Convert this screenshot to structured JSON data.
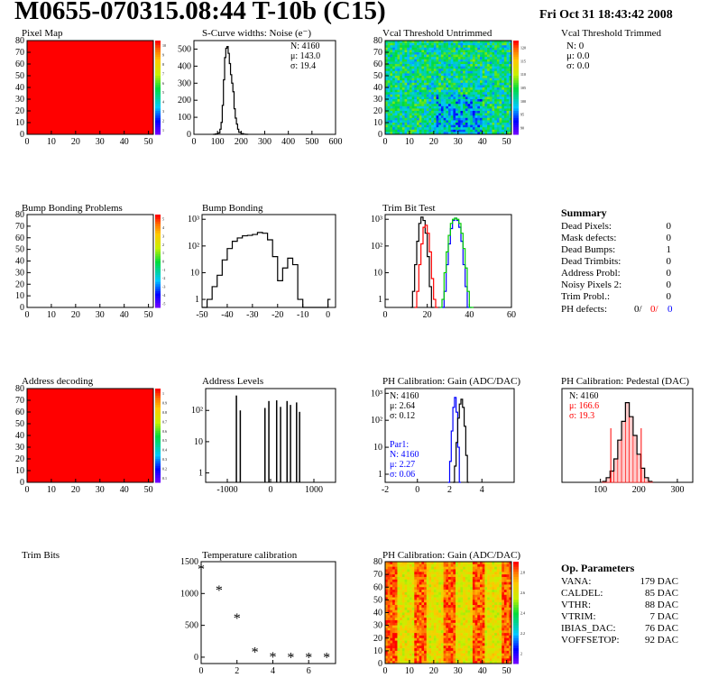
{
  "header": {
    "title": "M0655-070315.08:44 T-10b (C15)",
    "date": "Fri Oct 31 18:43:42 2008"
  },
  "panels": {
    "pixel_map": {
      "title": "Pixel Map",
      "xticks": [
        "0",
        "10",
        "20",
        "30",
        "40",
        "50"
      ],
      "yticks": [
        "0",
        "10",
        "20",
        "30",
        "40",
        "50",
        "60",
        "70",
        "80"
      ],
      "scale_ticks": [
        "10",
        "9",
        "8",
        "7",
        "6",
        "5",
        "4",
        "3",
        "2",
        "1"
      ]
    },
    "scurve": {
      "title": "S-Curve widths: Noise (e⁻)",
      "stats": [
        "N: 4160",
        "μ: 143.0",
        "σ: 19.4"
      ],
      "xticks": [
        "0",
        "100",
        "200",
        "300",
        "400",
        "500",
        "600"
      ],
      "yticks": [
        "0",
        "100",
        "200",
        "300",
        "400",
        "500"
      ]
    },
    "vcal_untrimmed": {
      "title": "Vcal Threshold Untrimmed",
      "xticks": [
        "0",
        "10",
        "20",
        "30",
        "40",
        "50"
      ],
      "yticks": [
        "0",
        "10",
        "20",
        "30",
        "40",
        "50",
        "60",
        "70",
        "80"
      ],
      "scale_ticks": [
        "120",
        "115",
        "110",
        "105",
        "100",
        "95",
        "90"
      ]
    },
    "vcal_trimmed": {
      "title": "Vcal Threshold Trimmed",
      "stats": [
        "N:    0",
        "μ:  0.0",
        "σ:  0.0"
      ]
    },
    "bump_problems": {
      "title": "Bump Bonding Problems",
      "xticks": [
        "0",
        "10",
        "20",
        "30",
        "40",
        "50"
      ],
      "yticks": [
        "0",
        "10",
        "20",
        "30",
        "40",
        "50",
        "60",
        "70",
        "80"
      ],
      "scale_ticks": [
        "5",
        "4",
        "3",
        "2",
        "1",
        "0",
        "-1",
        "-2",
        "-3",
        "-4",
        "-5"
      ]
    },
    "bump_bonding": {
      "title": "Bump Bonding",
      "xticks": [
        "-50",
        "-40",
        "-30",
        "-20",
        "-10",
        "0"
      ],
      "yticks": [
        "1",
        "10",
        "10²",
        "10³"
      ]
    },
    "trim_bit_test": {
      "title": "Trim Bit Test",
      "xticks": [
        "0",
        "20",
        "40",
        "60"
      ],
      "yticks": [
        "1",
        "10",
        "10²",
        "10³"
      ]
    },
    "summary": {
      "title": "Summary",
      "rows": [
        {
          "label": "Dead Pixels:",
          "value": "0"
        },
        {
          "label": "Mask defects:",
          "value": "0"
        },
        {
          "label": "Dead Bumps:",
          "value": "1"
        },
        {
          "label": "Dead Trimbits:",
          "value": "0"
        },
        {
          "label": "Address Probl:",
          "value": "0"
        },
        {
          "label": "Noisy Pixels 2:",
          "value": "0"
        },
        {
          "label": "Trim Probl.:",
          "value": "0"
        }
      ],
      "ph_label": "PH defects:",
      "ph_values": [
        "0/",
        "0/",
        "0"
      ]
    },
    "address_decoding": {
      "title": "Address decoding",
      "xticks": [
        "0",
        "10",
        "20",
        "30",
        "40",
        "50"
      ],
      "yticks": [
        "0",
        "10",
        "20",
        "30",
        "40",
        "50",
        "60",
        "70",
        "80"
      ],
      "scale_ticks": [
        "1",
        "0.9",
        "0.8",
        "0.7",
        "0.6",
        "0.5",
        "0.4",
        "0.3",
        "0.2",
        "0.1"
      ]
    },
    "address_levels": {
      "title": "Address Levels",
      "xticks": [
        "-1000",
        "0",
        "1000"
      ],
      "yticks": [
        "1",
        "10",
        "10²"
      ]
    },
    "ph_gain": {
      "title": "PH Calibration: Gain (ADC/DAC)",
      "stats": [
        "N: 4160",
        "μ: 2.64",
        "σ: 0.12"
      ],
      "par1": [
        "Par1:",
        "N: 4160",
        "μ: 2.27",
        "σ: 0.06"
      ],
      "xticks": [
        "-2",
        "0",
        "2",
        "4"
      ],
      "yticks": [
        "1",
        "10",
        "10²",
        "10³"
      ]
    },
    "ph_pedestal": {
      "title": "PH Calibration: Pedestal (DAC)",
      "stats": [
        "N: 4160",
        "μ: 166.6",
        "σ: 19.3"
      ],
      "xticks": [
        "100",
        "200",
        "300"
      ]
    },
    "trim_bits": {
      "title": "Trim Bits"
    },
    "temperature": {
      "title": "Temperature calibration",
      "xticks": [
        "0",
        "2",
        "4",
        "6"
      ],
      "yticks": [
        "0",
        "500",
        "1000",
        "1500"
      ]
    },
    "ph_gain_map": {
      "title": "PH Calibration: Gain (ADC/DAC)",
      "xticks": [
        "0",
        "10",
        "20",
        "30",
        "40",
        "50"
      ],
      "yticks": [
        "0",
        "10",
        "20",
        "30",
        "40",
        "50",
        "60",
        "70",
        "80"
      ],
      "scale_ticks": [
        "2.8",
        "2.6",
        "2.4",
        "2.2",
        "2"
      ]
    },
    "op_params": {
      "title": "Op. Parameters",
      "rows": [
        {
          "label": "VANA:",
          "value": "179 DAC"
        },
        {
          "label": "CALDEL:",
          "value": "85 DAC"
        },
        {
          "label": "VTHR:",
          "value": "88 DAC"
        },
        {
          "label": "VTRIM:",
          "value": "7 DAC"
        },
        {
          "label": "IBIAS_DAC:",
          "value": "76 DAC"
        },
        {
          "label": "VOFFSETOP:",
          "value": "92 DAC"
        }
      ]
    }
  },
  "chart_data": [
    {
      "type": "heatmap",
      "title": "Pixel Map",
      "xlim": [
        0,
        52
      ],
      "ylim": [
        0,
        80
      ],
      "uniform_value": 10,
      "zlim": [
        0,
        10
      ]
    },
    {
      "type": "line",
      "title": "S-Curve widths: Noise (e⁻)",
      "xlim": [
        0,
        600
      ],
      "ylim": [
        0,
        550
      ],
      "x": [
        80,
        90,
        100,
        110,
        115,
        120,
        125,
        130,
        135,
        140,
        145,
        150,
        155,
        160,
        165,
        170,
        175,
        180,
        185,
        190,
        200,
        210,
        220
      ],
      "y": [
        0,
        2,
        8,
        30,
        70,
        170,
        320,
        450,
        505,
        515,
        475,
        415,
        350,
        300,
        250,
        150,
        95,
        60,
        30,
        12,
        4,
        1,
        0
      ]
    },
    {
      "type": "heatmap",
      "title": "Vcal Threshold Untrimmed",
      "xlim": [
        0,
        52
      ],
      "ylim": [
        0,
        80
      ],
      "zlim": [
        90,
        122
      ]
    },
    {
      "type": "heatmap",
      "title": "Bump Bonding Problems",
      "xlim": [
        0,
        52
      ],
      "ylim": [
        0,
        80
      ],
      "zlim": [
        -5,
        5
      ]
    },
    {
      "type": "line",
      "title": "Bump Bonding",
      "log_y": true,
      "xlim": [
        -50,
        3
      ],
      "ylim": [
        0.5,
        1500
      ],
      "x": [
        -50,
        -48,
        -46,
        -44,
        -42,
        -40,
        -38,
        -36,
        -34,
        -32,
        -30,
        -28,
        -26,
        -24,
        -22,
        -20,
        -18,
        -16,
        -14,
        -12,
        -10,
        -1,
        0
      ],
      "y": [
        0,
        1,
        3,
        8,
        30,
        80,
        150,
        200,
        240,
        250,
        270,
        320,
        300,
        170,
        40,
        5,
        15,
        35,
        20,
        1,
        0,
        0,
        1
      ]
    },
    {
      "type": "line",
      "title": "Trim Bit Test",
      "log_y": true,
      "xlim": [
        0,
        60
      ],
      "ylim": [
        0.5,
        1500
      ],
      "series": [
        {
          "color": "#000000",
          "x": [
            12,
            13,
            14,
            15,
            16,
            17,
            18,
            19,
            20,
            21,
            22
          ],
          "y": [
            0,
            2,
            20,
            150,
            700,
            1200,
            900,
            300,
            40,
            3,
            0
          ]
        },
        {
          "color": "#ff0000",
          "x": [
            14,
            15,
            16,
            17,
            18,
            19,
            20,
            21,
            22,
            23,
            24
          ],
          "y": [
            0,
            2,
            20,
            120,
            500,
            600,
            300,
            60,
            6,
            1,
            0
          ]
        },
        {
          "color": "#0000ff",
          "x": [
            27,
            28,
            29,
            30,
            31,
            32,
            33,
            34,
            35,
            36,
            37,
            38,
            39,
            40
          ],
          "y": [
            0,
            2,
            20,
            120,
            450,
            900,
            1100,
            900,
            500,
            150,
            20,
            3,
            0,
            0
          ]
        },
        {
          "color": "#00cc00",
          "x": [
            26,
            27,
            28,
            29,
            30,
            31,
            32,
            33,
            34,
            35,
            36,
            37,
            38,
            39,
            40,
            41
          ],
          "y": [
            0,
            1,
            10,
            60,
            250,
            700,
            1000,
            1100,
            1000,
            700,
            300,
            80,
            15,
            2,
            0,
            0
          ]
        }
      ]
    },
    {
      "type": "heatmap",
      "title": "Address decoding",
      "xlim": [
        0,
        52
      ],
      "ylim": [
        0,
        80
      ],
      "uniform_value": 1,
      "zlim": [
        0,
        1
      ]
    },
    {
      "type": "bar",
      "title": "Address Levels",
      "log_y": true,
      "xlim": [
        -1500,
        1500
      ],
      "ylim": [
        0.5,
        500
      ],
      "x": [
        -790,
        -700,
        -130,
        -40,
        140,
        230,
        380,
        460,
        600,
        670
      ],
      "y": [
        300,
        100,
        120,
        200,
        210,
        130,
        200,
        150,
        180,
        90
      ]
    },
    {
      "type": "line",
      "title": "PH Calibration: Gain (ADC/DAC)",
      "log_y": true,
      "xlim": [
        -2,
        6
      ],
      "ylim": [
        0.5,
        1500
      ],
      "series": [
        {
          "name": "Par1",
          "color": "#0000ff",
          "x": [
            1.9,
            2.0,
            2.1,
            2.2,
            2.3,
            2.4,
            2.5,
            2.6
          ],
          "y": [
            0,
            3,
            40,
            300,
            700,
            200,
            10,
            0
          ]
        },
        {
          "color": "#000000",
          "x": [
            2.2,
            2.3,
            2.4,
            2.5,
            2.6,
            2.7,
            2.8,
            2.9,
            3.0,
            3.1
          ],
          "y": [
            0,
            2,
            15,
            120,
            400,
            600,
            300,
            60,
            5,
            0
          ]
        }
      ]
    },
    {
      "type": "bar",
      "title": "PH Calibration: Pedestal (DAC)",
      "xlim": [
        0,
        340
      ],
      "ylim": [
        0,
        100
      ],
      "x": [
        110,
        120,
        130,
        140,
        150,
        160,
        170,
        180,
        190,
        200,
        210,
        220,
        230
      ],
      "y": [
        1,
        5,
        12,
        25,
        45,
        65,
        85,
        70,
        50,
        30,
        15,
        5,
        1
      ]
    },
    {
      "type": "scatter",
      "title": "Temperature calibration",
      "xlim": [
        0,
        7.5
      ],
      "ylim": [
        -100,
        1500
      ],
      "x": [
        0,
        1,
        2,
        3,
        4,
        5,
        6,
        7
      ],
      "y": [
        1380,
        1050,
        610,
        80,
        0,
        -10,
        -5,
        -5
      ]
    },
    {
      "type": "heatmap",
      "title": "PH Calibration: Gain (ADC/DAC)",
      "xlim": [
        0,
        52
      ],
      "ylim": [
        0,
        80
      ],
      "zlim": [
        2,
        2.9
      ]
    }
  ]
}
